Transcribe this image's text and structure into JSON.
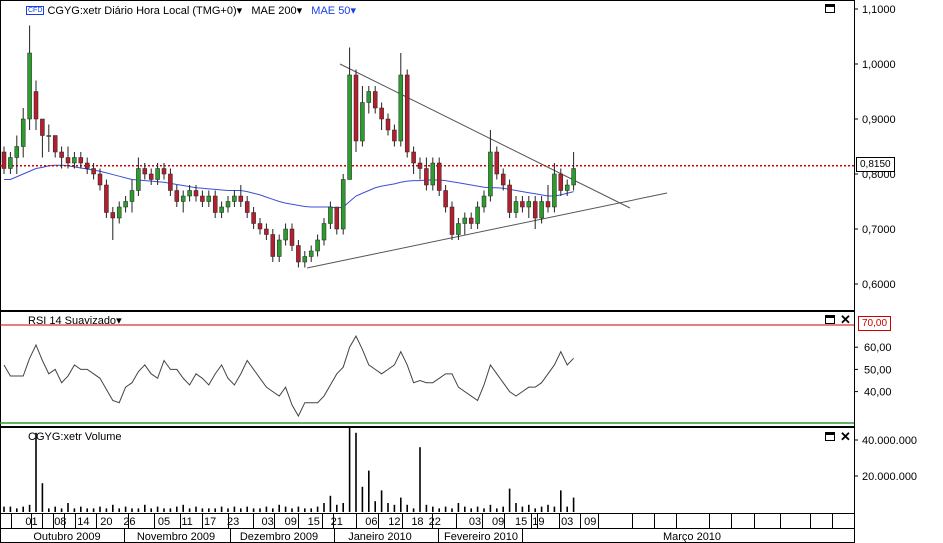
{
  "header": {
    "cfd_badge": "CFD",
    "symbol_label": "CGYG:xetr Diário Hora Local (TMG+0)",
    "mae200_label": "MAE 200",
    "mae50_label": "MAE 50"
  },
  "rsi_panel": {
    "title": "RSI 14 Suavizado",
    "level_label": "70,00"
  },
  "volume_panel": {
    "title": "CGYG:xetr Volume"
  },
  "last_price_label": "0,8150",
  "colors": {
    "up": "#2e9b2e",
    "down": "#b22030",
    "ma50": "#3a4fd8",
    "last_price": "#cc0000",
    "rsi_line": "#444444",
    "rsi_upper": "#cc0000",
    "rsi_lower": "#2e9b2e"
  },
  "chart_data": [
    {
      "type": "candlestick",
      "ylim": [
        0.55,
        1.11
      ],
      "y_ticks": [
        "0,6000",
        "0,7000",
        "0,8000",
        "0,9000",
        "1,0000",
        "1,1000"
      ],
      "x_day_ticks": [
        "01",
        "08",
        "14",
        "20",
        "26",
        "05",
        "11",
        "17",
        "23",
        "03",
        "09",
        "15",
        "21",
        "06",
        "12",
        "18",
        "22",
        "03",
        "09",
        "15",
        "19",
        "03",
        "09"
      ],
      "x_month_ticks": [
        "Outubro 2009",
        "Novembro 2009",
        "Dezembro 2009",
        "Janeiro 2010",
        "Fevereiro 2010",
        "Março 2010"
      ],
      "last_price": 0.815,
      "candles": [
        [
          0.84,
          0.85,
          0.8,
          0.81
        ],
        [
          0.81,
          0.84,
          0.8,
          0.83
        ],
        [
          0.83,
          0.87,
          0.8,
          0.85
        ],
        [
          0.85,
          0.92,
          0.83,
          0.9
        ],
        [
          0.9,
          1.07,
          0.88,
          1.02
        ],
        [
          0.95,
          0.97,
          0.88,
          0.9
        ],
        [
          0.9,
          0.9,
          0.83,
          0.87
        ],
        [
          0.87,
          0.89,
          0.84,
          0.87
        ],
        [
          0.87,
          0.87,
          0.83,
          0.84
        ],
        [
          0.84,
          0.85,
          0.81,
          0.83
        ],
        [
          0.83,
          0.85,
          0.81,
          0.82
        ],
        [
          0.82,
          0.84,
          0.81,
          0.83
        ],
        [
          0.83,
          0.84,
          0.81,
          0.82
        ],
        [
          0.82,
          0.83,
          0.8,
          0.81
        ],
        [
          0.81,
          0.82,
          0.79,
          0.8
        ],
        [
          0.8,
          0.81,
          0.77,
          0.78
        ],
        [
          0.78,
          0.79,
          0.72,
          0.73
        ],
        [
          0.73,
          0.74,
          0.68,
          0.72
        ],
        [
          0.72,
          0.75,
          0.71,
          0.74
        ],
        [
          0.74,
          0.76,
          0.73,
          0.75
        ],
        [
          0.75,
          0.79,
          0.73,
          0.77
        ],
        [
          0.77,
          0.83,
          0.76,
          0.81
        ],
        [
          0.81,
          0.82,
          0.79,
          0.8
        ],
        [
          0.8,
          0.81,
          0.78,
          0.79
        ],
        [
          0.79,
          0.82,
          0.78,
          0.81
        ],
        [
          0.81,
          0.82,
          0.79,
          0.8
        ],
        [
          0.8,
          0.81,
          0.76,
          0.77
        ],
        [
          0.77,
          0.78,
          0.74,
          0.75
        ],
        [
          0.75,
          0.77,
          0.73,
          0.76
        ],
        [
          0.76,
          0.78,
          0.75,
          0.77
        ],
        [
          0.77,
          0.78,
          0.75,
          0.76
        ],
        [
          0.76,
          0.77,
          0.74,
          0.75
        ],
        [
          0.75,
          0.77,
          0.74,
          0.76
        ],
        [
          0.76,
          0.77,
          0.72,
          0.73
        ],
        [
          0.73,
          0.75,
          0.72,
          0.74
        ],
        [
          0.74,
          0.76,
          0.73,
          0.75
        ],
        [
          0.75,
          0.77,
          0.74,
          0.76
        ],
        [
          0.76,
          0.78,
          0.74,
          0.75
        ],
        [
          0.75,
          0.76,
          0.72,
          0.73
        ],
        [
          0.73,
          0.74,
          0.7,
          0.71
        ],
        [
          0.71,
          0.72,
          0.69,
          0.7
        ],
        [
          0.7,
          0.71,
          0.68,
          0.69
        ],
        [
          0.69,
          0.7,
          0.64,
          0.65
        ],
        [
          0.65,
          0.69,
          0.64,
          0.68
        ],
        [
          0.68,
          0.71,
          0.67,
          0.7
        ],
        [
          0.7,
          0.71,
          0.66,
          0.67
        ],
        [
          0.67,
          0.68,
          0.63,
          0.64
        ],
        [
          0.64,
          0.66,
          0.63,
          0.65
        ],
        [
          0.65,
          0.67,
          0.64,
          0.66
        ],
        [
          0.66,
          0.69,
          0.65,
          0.68
        ],
        [
          0.68,
          0.72,
          0.67,
          0.71
        ],
        [
          0.71,
          0.75,
          0.7,
          0.74
        ],
        [
          0.74,
          0.74,
          0.69,
          0.7
        ],
        [
          0.7,
          0.8,
          0.69,
          0.79
        ],
        [
          0.79,
          1.03,
          0.79,
          0.98
        ],
        [
          0.98,
          0.99,
          0.84,
          0.86
        ],
        [
          0.86,
          0.96,
          0.85,
          0.93
        ],
        [
          0.93,
          0.96,
          0.91,
          0.95
        ],
        [
          0.95,
          0.96,
          0.91,
          0.92
        ],
        [
          0.92,
          0.93,
          0.88,
          0.9
        ],
        [
          0.9,
          0.91,
          0.87,
          0.88
        ],
        [
          0.88,
          0.89,
          0.85,
          0.86
        ],
        [
          0.86,
          1.02,
          0.85,
          0.98
        ],
        [
          0.98,
          0.99,
          0.83,
          0.84
        ],
        [
          0.84,
          0.85,
          0.8,
          0.82
        ],
        [
          0.82,
          0.83,
          0.79,
          0.81
        ],
        [
          0.81,
          0.83,
          0.77,
          0.78
        ],
        [
          0.78,
          0.83,
          0.77,
          0.82
        ],
        [
          0.82,
          0.83,
          0.76,
          0.77
        ],
        [
          0.77,
          0.78,
          0.73,
          0.74
        ],
        [
          0.74,
          0.75,
          0.68,
          0.69
        ],
        [
          0.69,
          0.72,
          0.68,
          0.71
        ],
        [
          0.71,
          0.73,
          0.69,
          0.72
        ],
        [
          0.72,
          0.73,
          0.7,
          0.71
        ],
        [
          0.71,
          0.75,
          0.7,
          0.74
        ],
        [
          0.74,
          0.77,
          0.73,
          0.76
        ],
        [
          0.76,
          0.88,
          0.75,
          0.84
        ],
        [
          0.84,
          0.85,
          0.79,
          0.8
        ],
        [
          0.8,
          0.81,
          0.77,
          0.78
        ],
        [
          0.78,
          0.79,
          0.72,
          0.73
        ],
        [
          0.73,
          0.76,
          0.72,
          0.75
        ],
        [
          0.75,
          0.76,
          0.73,
          0.74
        ],
        [
          0.74,
          0.76,
          0.72,
          0.75
        ],
        [
          0.75,
          0.76,
          0.7,
          0.72
        ],
        [
          0.72,
          0.76,
          0.71,
          0.75
        ],
        [
          0.75,
          0.78,
          0.73,
          0.74
        ],
        [
          0.74,
          0.82,
          0.73,
          0.8
        ],
        [
          0.8,
          0.81,
          0.76,
          0.77
        ],
        [
          0.77,
          0.79,
          0.76,
          0.78
        ],
        [
          0.78,
          0.84,
          0.77,
          0.81
        ]
      ]
    },
    {
      "type": "line",
      "name": "MAE 50",
      "ylim": [
        0.55,
        1.11
      ],
      "values": [
        0.79,
        0.79,
        0.795,
        0.8,
        0.805,
        0.81,
        0.812,
        0.815,
        0.816,
        0.816,
        0.815,
        0.813,
        0.811,
        0.809,
        0.807,
        0.805,
        0.802,
        0.799,
        0.796,
        0.793,
        0.79,
        0.789,
        0.788,
        0.787,
        0.786,
        0.785,
        0.783,
        0.781,
        0.779,
        0.777,
        0.775,
        0.774,
        0.773,
        0.772,
        0.771,
        0.77,
        0.77,
        0.77,
        0.768,
        0.765,
        0.762,
        0.758,
        0.754,
        0.75,
        0.747,
        0.745,
        0.743,
        0.741,
        0.74,
        0.74,
        0.74,
        0.74,
        0.738,
        0.74,
        0.75,
        0.76,
        0.765,
        0.77,
        0.775,
        0.778,
        0.78,
        0.782,
        0.785,
        0.787,
        0.788,
        0.788,
        0.789,
        0.789,
        0.789,
        0.788,
        0.786,
        0.784,
        0.782,
        0.78,
        0.778,
        0.776,
        0.775,
        0.775,
        0.774,
        0.772,
        0.77,
        0.768,
        0.766,
        0.764,
        0.762,
        0.76,
        0.76,
        0.762,
        0.765,
        0.768
      ]
    },
    {
      "type": "line",
      "name": "RSI 14 Suavizado",
      "ylim": [
        28,
        77
      ],
      "y_ticks": [
        "40,00",
        "50,00",
        "60,00"
      ],
      "level": 70,
      "values": [
        52,
        47,
        47,
        47,
        55,
        61,
        54,
        48,
        50,
        44,
        47,
        52,
        50,
        50,
        48,
        46,
        41,
        36,
        35,
        42,
        44,
        49,
        52,
        48,
        46,
        54,
        50,
        50,
        46,
        43,
        48,
        46,
        43,
        48,
        52,
        46,
        43,
        48,
        54,
        50,
        46,
        42,
        40,
        38,
        42,
        34,
        29,
        35,
        35,
        35,
        38,
        43,
        48,
        51,
        60,
        65,
        59,
        52,
        50,
        48,
        50,
        52,
        58,
        52,
        44,
        45,
        44,
        44,
        46,
        48,
        48,
        42,
        40,
        38,
        36,
        43,
        52,
        48,
        44,
        40,
        38,
        40,
        42,
        42,
        44,
        48,
        52,
        58,
        52,
        55
      ]
    },
    {
      "type": "bar",
      "name": "CGYG:xetr Volume",
      "ylim": [
        0,
        50000000
      ],
      "y_ticks": [
        "20.000.000",
        "40.000.000"
      ],
      "values": [
        3000000,
        3000000,
        2000000,
        3000000,
        4000000,
        44000000,
        16000000,
        2000000,
        3000000,
        2000000,
        5000000,
        2000000,
        3000000,
        2000000,
        2000000,
        3000000,
        2000000,
        4000000,
        2000000,
        3000000,
        2000000,
        2000000,
        4000000,
        2000000,
        3000000,
        2000000,
        2000000,
        3000000,
        4000000,
        2000000,
        3000000,
        2000000,
        2000000,
        2000000,
        3000000,
        2000000,
        3000000,
        2000000,
        3000000,
        2000000,
        2000000,
        3000000,
        2000000,
        4000000,
        3000000,
        2000000,
        3000000,
        2000000,
        2000000,
        3000000,
        5000000,
        9000000,
        4000000,
        5000000,
        47000000,
        44000000,
        14000000,
        23000000,
        6000000,
        12000000,
        5000000,
        4000000,
        8000000,
        4000000,
        2000000,
        36000000,
        4000000,
        3000000,
        2000000,
        3000000,
        2000000,
        5000000,
        3000000,
        2000000,
        3000000,
        2000000,
        4000000,
        2000000,
        3000000,
        13000000,
        5000000,
        3000000,
        4000000,
        2000000,
        3000000,
        4000000,
        3000000,
        12000000,
        3000000,
        8000000
      ]
    }
  ]
}
